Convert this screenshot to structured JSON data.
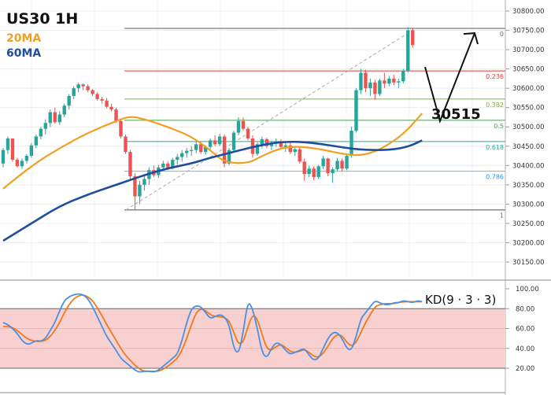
{
  "legend": {
    "title": "US30 1H",
    "ma20_label": "20MA",
    "ma60_label": "60MA",
    "ma20_color": "#f0a020",
    "ma60_color": "#1f4e9c"
  },
  "annotation": {
    "target_label": "30515"
  },
  "colors": {
    "up_candle": "#26a69a",
    "down_candle": "#ef5350",
    "k_line": "#4a90e2",
    "d_line": "#ef7a1e",
    "kd_band": "#f8d0d0"
  },
  "chart_data": [
    {
      "type": "candlestick",
      "title": "US30 1H",
      "y_axis": {
        "ylim": [
          30130,
          30820
        ],
        "ticks": [
          30800,
          30750,
          30700,
          30650,
          30600,
          30550,
          30500,
          30450,
          30400,
          30350,
          30300,
          30250,
          30200,
          30150
        ],
        "tick_labels": [
          "30800.00",
          "30750.00",
          "30700.00",
          "30650.00",
          "30600.00",
          "30550.00",
          "30500.00",
          "30450.00",
          "30400.00",
          "30350.00",
          "30300.00",
          "30250.00",
          "30200.00",
          "30150.00"
        ]
      },
      "candles": [
        [
          30405,
          30445,
          30395,
          30440
        ],
        [
          30440,
          30475,
          30430,
          30470
        ],
        [
          30470,
          30468,
          30410,
          30415
        ],
        [
          30415,
          30420,
          30395,
          30398
        ],
        [
          30398,
          30418,
          30392,
          30412
        ],
        [
          30412,
          30430,
          30405,
          30425
        ],
        [
          30425,
          30458,
          30420,
          30452
        ],
        [
          30452,
          30480,
          30445,
          30475
        ],
        [
          30475,
          30500,
          30468,
          30495
        ],
        [
          30495,
          30520,
          30480,
          30510
        ],
        [
          30510,
          30545,
          30500,
          30538
        ],
        [
          30538,
          30550,
          30508,
          30512
        ],
        [
          30512,
          30540,
          30505,
          30532
        ],
        [
          30532,
          30560,
          30525,
          30555
        ],
        [
          30555,
          30585,
          30545,
          30580
        ],
        [
          30580,
          30605,
          30572,
          30600
        ],
        [
          30600,
          30615,
          30590,
          30610
        ],
        [
          30610,
          30612,
          30595,
          30605
        ],
        [
          30605,
          30610,
          30590,
          30595
        ],
        [
          30595,
          30598,
          30580,
          30585
        ],
        [
          30585,
          30590,
          30568,
          30572
        ],
        [
          30572,
          30578,
          30560,
          30568
        ],
        [
          30568,
          30575,
          30548,
          30552
        ],
        [
          30552,
          30560,
          30540,
          30545
        ],
        [
          30545,
          30550,
          30510,
          30515
        ],
        [
          30515,
          30520,
          30470,
          30475
        ],
        [
          30475,
          30480,
          30430,
          30435
        ],
        [
          30435,
          30440,
          30360,
          30372
        ],
        [
          30372,
          30380,
          30285,
          30320
        ],
        [
          30320,
          30360,
          30300,
          30350
        ],
        [
          30350,
          30375,
          30335,
          30365
        ],
        [
          30365,
          30395,
          30350,
          30388
        ],
        [
          30388,
          30400,
          30370,
          30375
        ],
        [
          30375,
          30402,
          30368,
          30395
        ],
        [
          30395,
          30412,
          30385,
          30405
        ],
        [
          30405,
          30410,
          30388,
          30395
        ],
        [
          30395,
          30420,
          30390,
          30415
        ],
        [
          30415,
          30430,
          30402,
          30422
        ],
        [
          30422,
          30440,
          30410,
          30432
        ],
        [
          30432,
          30445,
          30420,
          30438
        ],
        [
          30438,
          30450,
          30425,
          30440
        ],
        [
          30440,
          30462,
          30432,
          30455
        ],
        [
          30455,
          30460,
          30430,
          30435
        ],
        [
          30435,
          30452,
          30428,
          30448
        ],
        [
          30448,
          30470,
          30440,
          30465
        ],
        [
          30465,
          30478,
          30450,
          30455
        ],
        [
          30455,
          30482,
          30450,
          30475
        ],
        [
          30475,
          30480,
          30395,
          30405
        ],
        [
          30405,
          30445,
          30400,
          30440
        ],
        [
          30440,
          30490,
          30435,
          30485
        ],
        [
          30485,
          30525,
          30478,
          30515
        ],
        [
          30515,
          30525,
          30490,
          30495
        ],
        [
          30495,
          30500,
          30465,
          30470
        ],
        [
          30470,
          30478,
          30420,
          30430
        ],
        [
          30430,
          30460,
          30425,
          30455
        ],
        [
          30455,
          30475,
          30445,
          30468
        ],
        [
          30468,
          30472,
          30445,
          30450
        ],
        [
          30450,
          30462,
          30440,
          30458
        ],
        [
          30458,
          30470,
          30448,
          30462
        ],
        [
          30462,
          30468,
          30442,
          30448
        ],
        [
          30448,
          30458,
          30435,
          30452
        ],
        [
          30452,
          30460,
          30430,
          30435
        ],
        [
          30435,
          30448,
          30425,
          30442
        ],
        [
          30442,
          30446,
          30405,
          30410
        ],
        [
          30410,
          30418,
          30360,
          30378
        ],
        [
          30378,
          30400,
          30370,
          30392
        ],
        [
          30392,
          30398,
          30362,
          30370
        ],
        [
          30370,
          30402,
          30365,
          30398
        ],
        [
          30398,
          30425,
          30390,
          30418
        ],
        [
          30418,
          30420,
          30372,
          30380
        ],
        [
          30380,
          30395,
          30355,
          30390
        ],
        [
          30390,
          30420,
          30385,
          30412
        ],
        [
          30412,
          30418,
          30385,
          30392
        ],
        [
          30392,
          30430,
          30388,
          30425
        ],
        [
          30425,
          30500,
          30420,
          30490
        ],
        [
          30490,
          30600,
          30485,
          30595
        ],
        [
          30595,
          30650,
          30585,
          30640
        ],
        [
          30640,
          30648,
          30590,
          30600
        ],
        [
          30600,
          30625,
          30580,
          30615
        ],
        [
          30615,
          30622,
          30570,
          30585
        ],
        [
          30585,
          30625,
          30580,
          30620
        ],
        [
          30620,
          30640,
          30600,
          30612
        ],
        [
          30612,
          30632,
          30605,
          30625
        ],
        [
          30625,
          30635,
          30608,
          30615
        ],
        [
          30615,
          30625,
          30600,
          30618
        ],
        [
          30618,
          30650,
          30612,
          30645
        ],
        [
          30645,
          30758,
          30640,
          30750
        ],
        [
          30750,
          30755,
          30705,
          30712
        ]
      ],
      "ma20": [
        [
          0,
          30340
        ],
        [
          6,
          30400
        ],
        [
          12,
          30445
        ],
        [
          18,
          30485
        ],
        [
          24,
          30515
        ],
        [
          27,
          30528
        ],
        [
          30,
          30520
        ],
        [
          35,
          30500
        ],
        [
          40,
          30475
        ],
        [
          44,
          30440
        ],
        [
          47,
          30408
        ],
        [
          52,
          30405
        ],
        [
          55,
          30425
        ],
        [
          60,
          30450
        ],
        [
          66,
          30446
        ],
        [
          72,
          30430
        ],
        [
          76,
          30425
        ],
        [
          80,
          30440
        ],
        [
          85,
          30480
        ],
        [
          89,
          30535
        ]
      ],
      "ma60": [
        [
          0,
          30205
        ],
        [
          6,
          30250
        ],
        [
          12,
          30295
        ],
        [
          18,
          30325
        ],
        [
          24,
          30350
        ],
        [
          30,
          30375
        ],
        [
          35,
          30393
        ],
        [
          40,
          30405
        ],
        [
          44,
          30420
        ],
        [
          48,
          30432
        ],
        [
          53,
          30448
        ],
        [
          58,
          30460
        ],
        [
          63,
          30462
        ],
        [
          68,
          30455
        ],
        [
          73,
          30445
        ],
        [
          77,
          30440
        ],
        [
          82,
          30440
        ],
        [
          86,
          30448
        ],
        [
          89,
          30465
        ]
      ],
      "fibonacci": {
        "levels": [
          {
            "label": "0",
            "value": 30755
          },
          {
            "label": "0.236",
            "value": 30645
          },
          {
            "label": "0.382",
            "value": 30572
          },
          {
            "label": "0.5",
            "value": 30517
          },
          {
            "label": "0.618",
            "value": 30462
          },
          {
            "label": "0.786",
            "value": 30385
          },
          {
            "label": "1",
            "value": 30285
          }
        ]
      },
      "projection": [
        [
          30655
        ],
        [
          30515
        ],
        [
          30755
        ]
      ]
    },
    {
      "type": "line",
      "title": "KD(9 · 3 · 3)",
      "y_axis": {
        "ylim": [
          11,
          106
        ],
        "ticks": [
          100,
          80,
          60,
          40,
          20
        ],
        "tick_labels": [
          "100.00",
          "80.00",
          "60.00",
          "40.00",
          "20.00"
        ]
      },
      "band": [
        20,
        80
      ],
      "series": [
        {
          "name": "K",
          "values": [
            66,
            64,
            60,
            55,
            48,
            44,
            45,
            48,
            47,
            50,
            58,
            66,
            78,
            88,
            92,
            94,
            95,
            94,
            90,
            82,
            72,
            62,
            52,
            45,
            38,
            30,
            26,
            22,
            18,
            16,
            17,
            17,
            16,
            18,
            22,
            26,
            30,
            34,
            48,
            66,
            80,
            83,
            82,
            76,
            70,
            72,
            74,
            72,
            64,
            40,
            34,
            56,
            88,
            80,
            60,
            36,
            30,
            40,
            46,
            44,
            38,
            34,
            36,
            38,
            40,
            33,
            28,
            30,
            40,
            50,
            56,
            56,
            50,
            40,
            38,
            52,
            70,
            76,
            82,
            88,
            86,
            84,
            84,
            86,
            86,
            88,
            87,
            86,
            88,
            87
          ]
        },
        {
          "name": "D",
          "values": [
            62,
            62,
            61,
            58,
            54,
            50,
            48,
            47,
            47,
            48,
            52,
            58,
            66,
            76,
            84,
            90,
            93,
            94,
            92,
            88,
            81,
            73,
            64,
            56,
            48,
            40,
            33,
            28,
            23,
            19,
            17,
            17,
            17,
            17,
            19,
            22,
            26,
            30,
            38,
            50,
            64,
            76,
            80,
            78,
            74,
            72,
            72,
            71,
            68,
            56,
            44,
            46,
            62,
            74,
            70,
            54,
            40,
            38,
            42,
            44,
            41,
            37,
            36,
            37,
            39,
            36,
            32,
            31,
            35,
            42,
            50,
            54,
            53,
            46,
            42,
            46,
            56,
            66,
            74,
            82,
            84,
            85,
            85,
            85,
            86,
            87,
            87,
            87,
            87,
            87
          ]
        }
      ]
    }
  ]
}
